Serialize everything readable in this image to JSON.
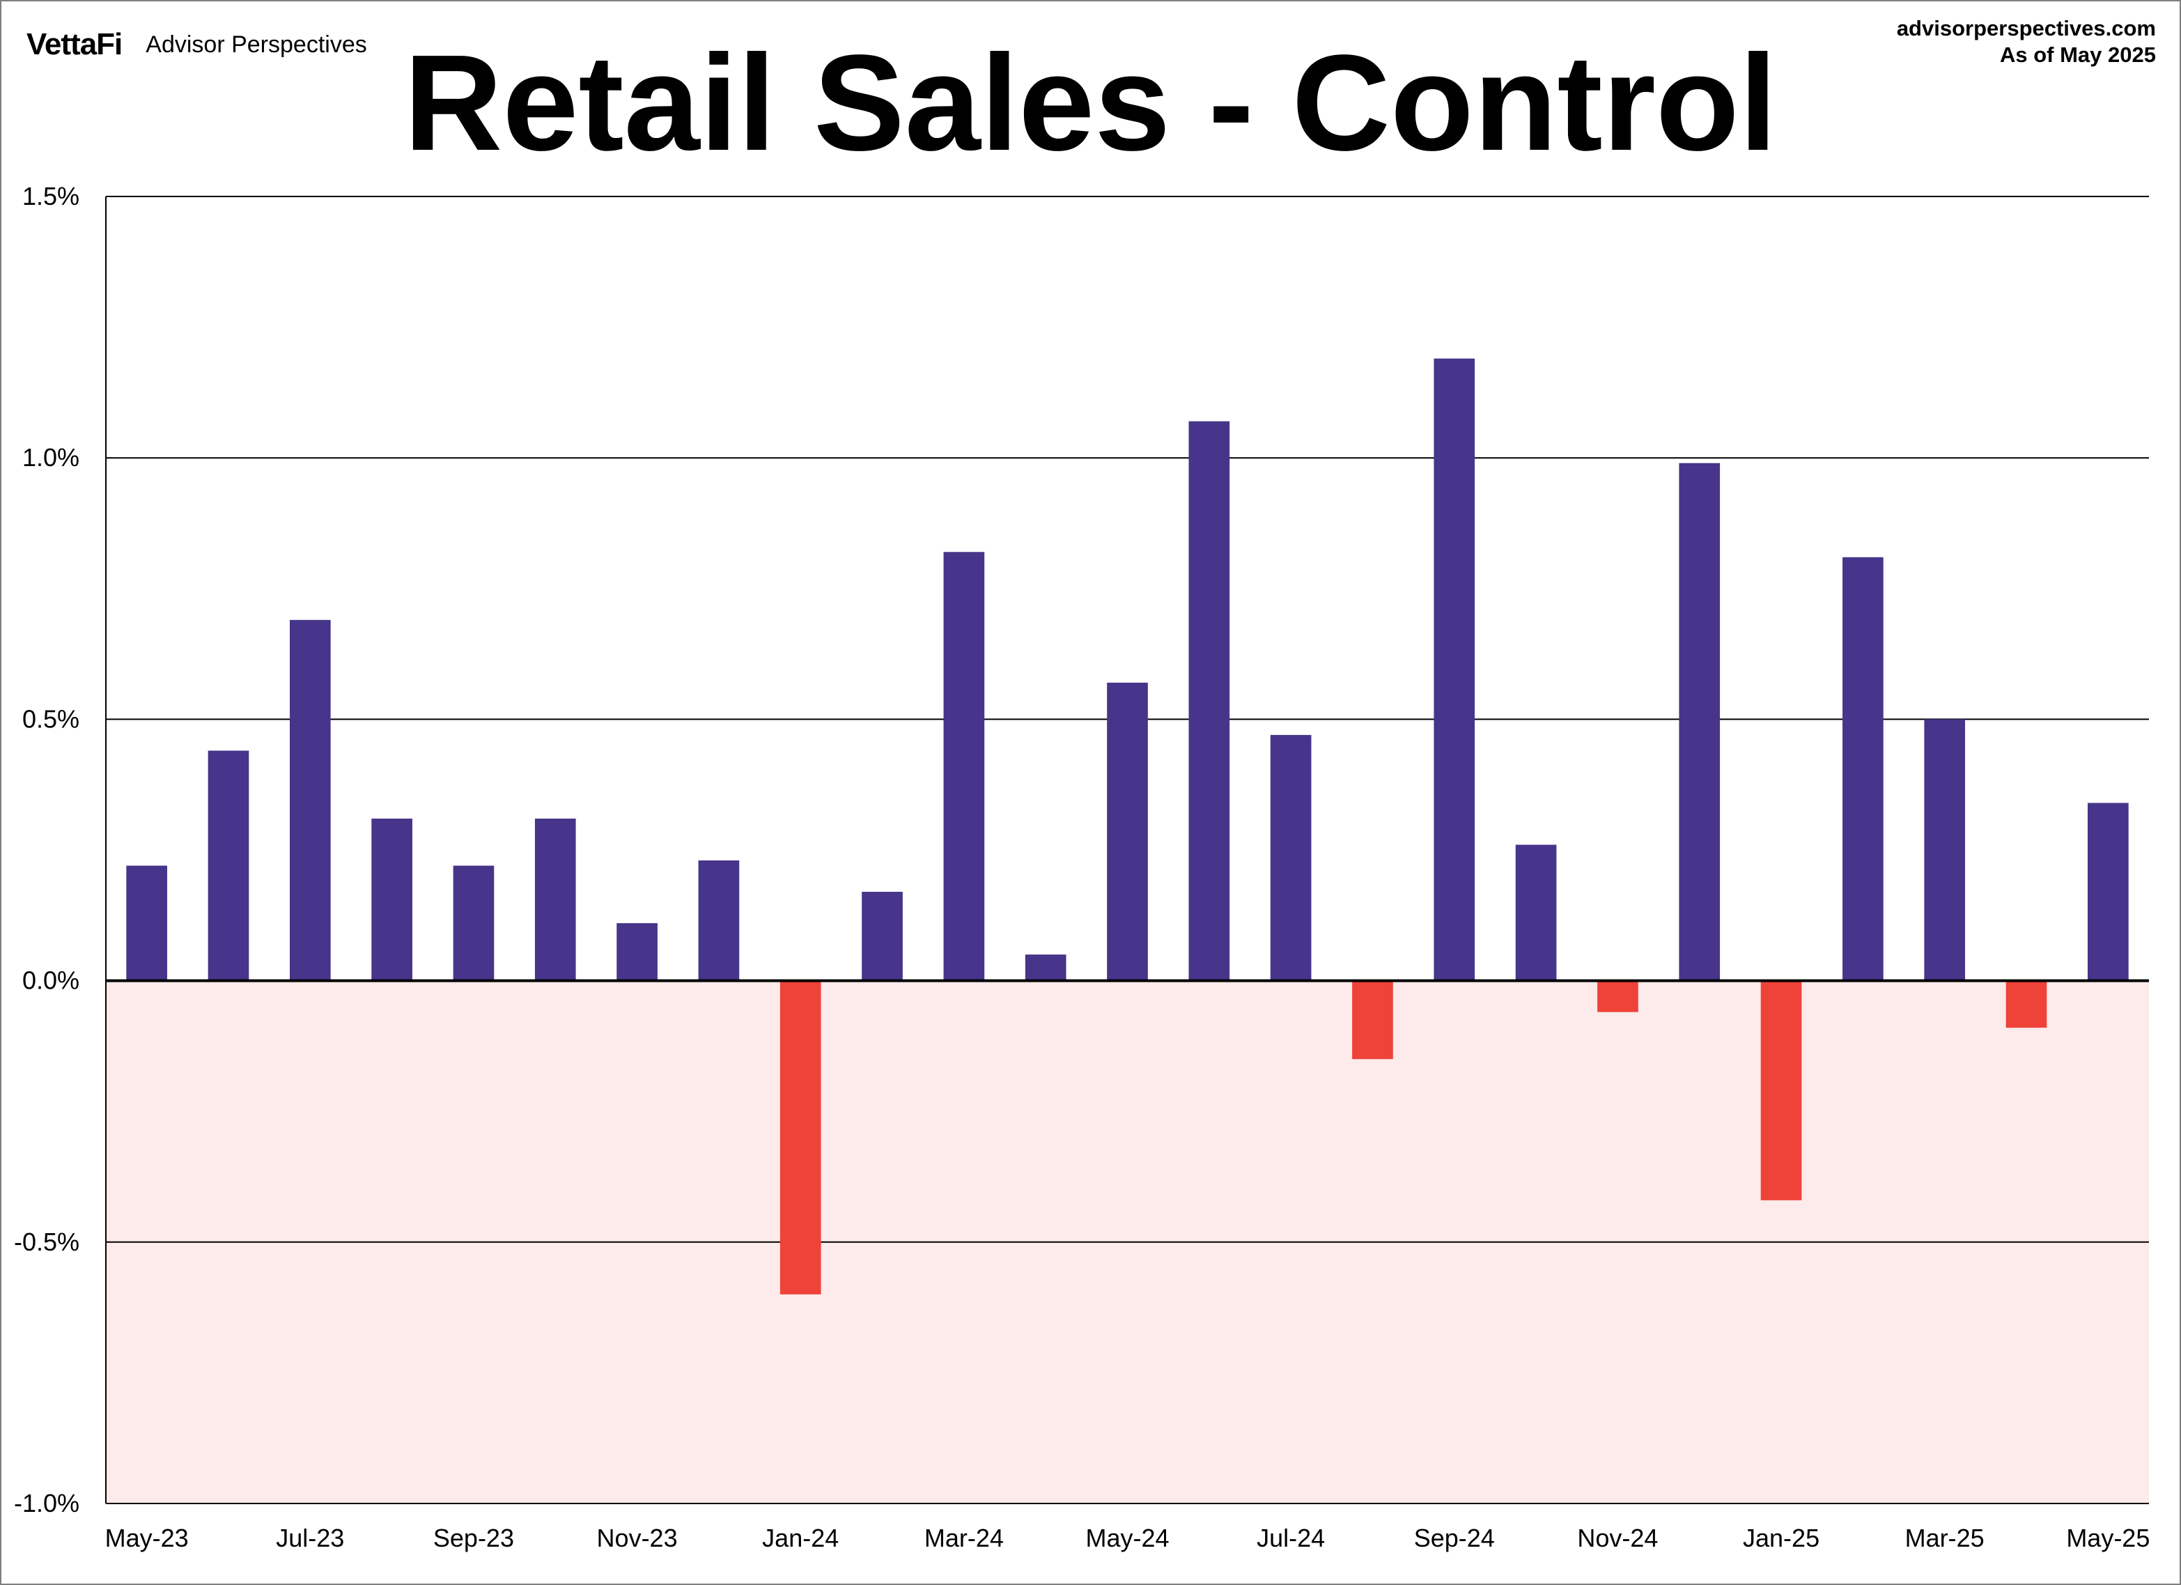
{
  "branding": {
    "logo_text": "VettaFi",
    "sub_text": "Advisor Perspectives",
    "website": "advisorperspectives.com",
    "as_of": "As of May 2025"
  },
  "colors": {
    "positive": "#46358a",
    "negative": "#ef4238",
    "negative_zone": "#fdeaea",
    "grid": "#000000"
  },
  "chart_data": {
    "type": "bar",
    "title": "Retail Sales - Control",
    "xlabel": "",
    "ylabel": "",
    "ylim": [
      -1.0,
      1.5
    ],
    "yticks": [
      1.5,
      1.0,
      0.5,
      0.0,
      -0.5,
      -1.0
    ],
    "ytick_labels": [
      "1.5%",
      "1.0%",
      "0.5%",
      "0.0%",
      "-0.5%",
      "-1.0%"
    ],
    "categories": [
      "May-23",
      "Jun-23",
      "Jul-23",
      "Aug-23",
      "Sep-23",
      "Oct-23",
      "Nov-23",
      "Dec-23",
      "Jan-24",
      "Feb-24",
      "Mar-24",
      "Apr-24",
      "May-24",
      "Jun-24",
      "Jul-24",
      "Aug-24",
      "Sep-24",
      "Oct-24",
      "Nov-24",
      "Dec-24",
      "Jan-25",
      "Feb-25",
      "Mar-25",
      "Apr-25",
      "May-25"
    ],
    "xtick_labels": [
      "May-23",
      "Jul-23",
      "Sep-23",
      "Nov-23",
      "Jan-24",
      "Mar-24",
      "May-24",
      "Jul-24",
      "Sep-24",
      "Nov-24",
      "Jan-25",
      "Mar-25",
      "May-25"
    ],
    "values": [
      0.22,
      0.44,
      0.69,
      0.31,
      0.22,
      0.31,
      0.11,
      0.23,
      -0.6,
      0.17,
      0.82,
      0.05,
      0.57,
      1.07,
      0.47,
      -0.15,
      1.19,
      0.26,
      -0.06,
      0.99,
      -0.42,
      0.81,
      0.5,
      -0.09,
      0.34
    ],
    "grid": true,
    "negative_region_shaded": true
  }
}
